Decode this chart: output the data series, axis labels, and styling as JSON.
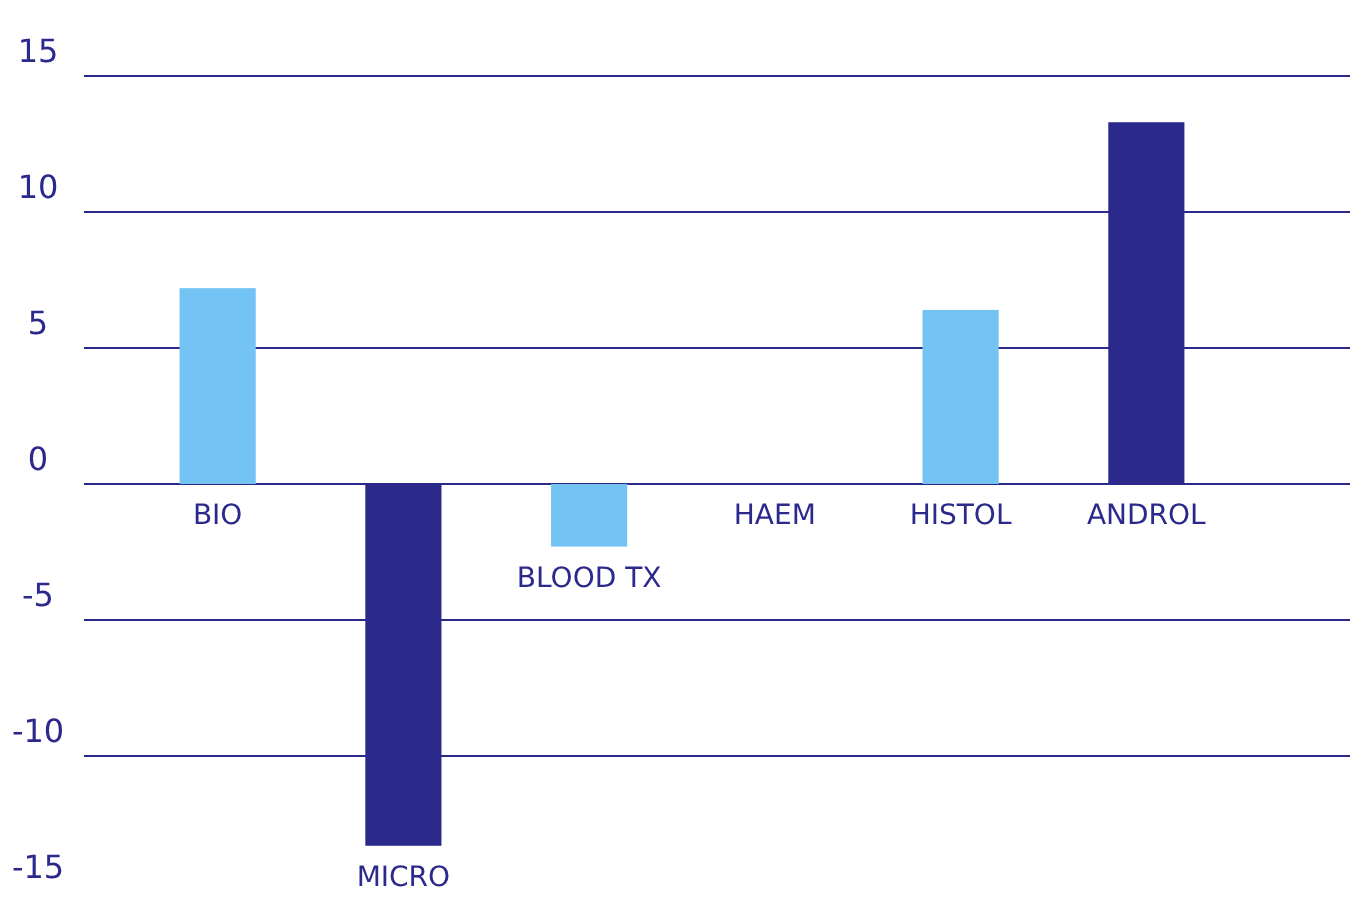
{
  "chart_data": {
    "type": "bar",
    "categories": [
      "BIO",
      "MICRO",
      "BLOOD TX",
      "HAEM",
      "HISTOL",
      "ANDROL"
    ],
    "values": [
      7.2,
      -13.3,
      -2.3,
      0,
      6.4,
      13.3
    ],
    "colors": [
      "#73c3f4",
      "#2b2a8c",
      "#73c3f4",
      "#2b2a8c",
      "#73c3f4",
      "#2b2a8c"
    ],
    "ylim": [
      -15,
      15
    ],
    "yticks": [
      -15,
      -10,
      -5,
      0,
      5,
      10,
      15
    ],
    "grid": "y"
  }
}
